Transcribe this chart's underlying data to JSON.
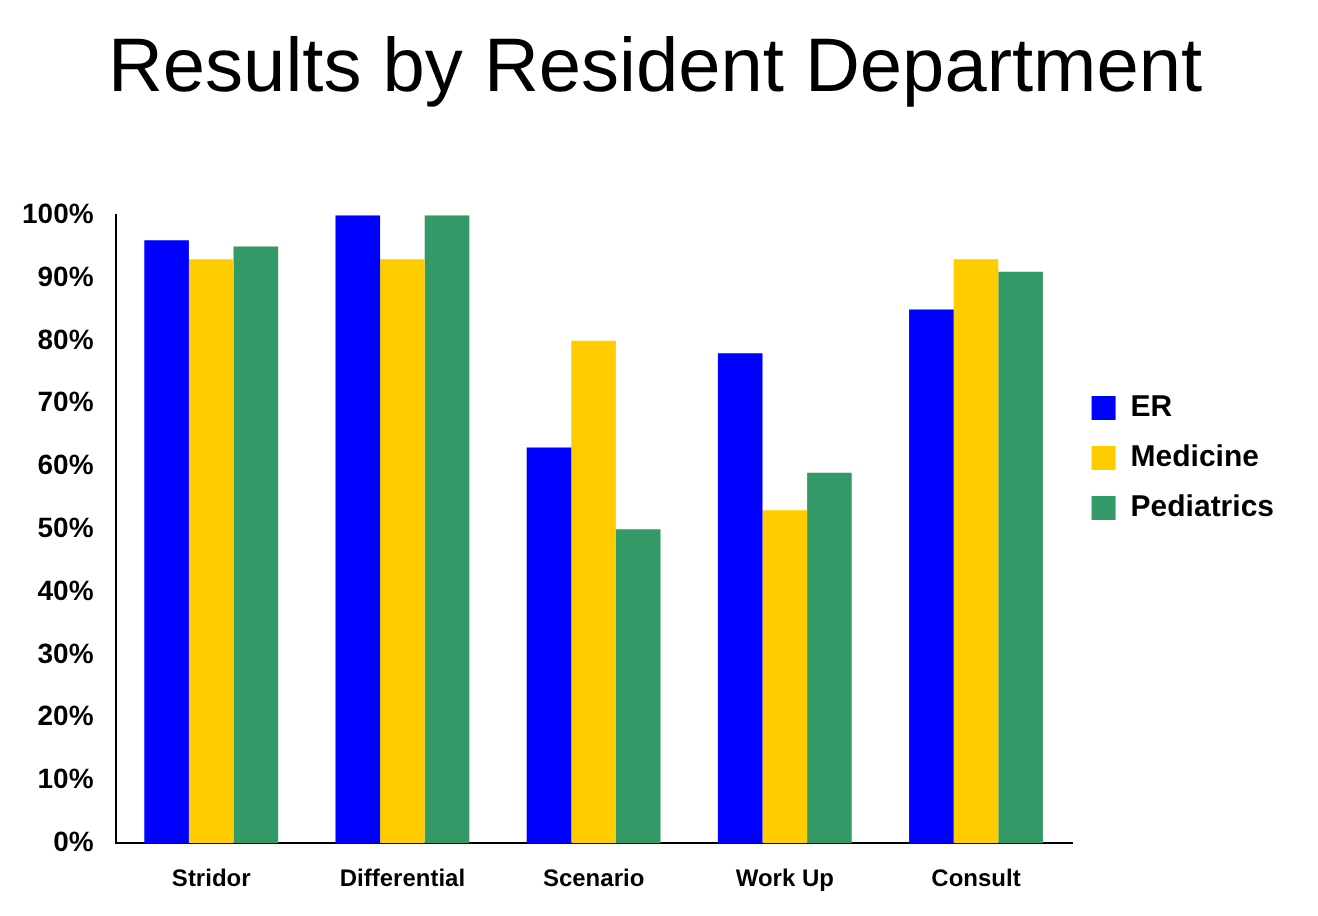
{
  "chart_data": {
    "type": "bar",
    "title": "Results by Resident Department",
    "categories": [
      "Stridor",
      "Differential",
      "Scenario",
      "Work Up",
      "Consult"
    ],
    "series": [
      {
        "name": "ER",
        "color": "#0000ff",
        "values": [
          96,
          100,
          63,
          78,
          85
        ]
      },
      {
        "name": "Medicine",
        "color": "#ffcc00",
        "values": [
          93,
          93,
          80,
          53,
          93
        ]
      },
      {
        "name": "Pediatrics",
        "color": "#339966",
        "values": [
          95,
          100,
          50,
          59,
          91
        ]
      }
    ],
    "ylim": [
      0,
      100
    ],
    "yticks": [
      {
        "value": 0,
        "label": "0%"
      },
      {
        "value": 10,
        "label": "10%"
      },
      {
        "value": 20,
        "label": "20%"
      },
      {
        "value": 30,
        "label": "30%"
      },
      {
        "value": 40,
        "label": "40%"
      },
      {
        "value": 50,
        "label": "50%"
      },
      {
        "value": 60,
        "label": "60%"
      },
      {
        "value": 70,
        "label": "70%"
      },
      {
        "value": 80,
        "label": "80%"
      },
      {
        "value": 90,
        "label": "90%"
      },
      {
        "value": 100,
        "label": "100%"
      }
    ],
    "grid": false,
    "legend": "right"
  }
}
